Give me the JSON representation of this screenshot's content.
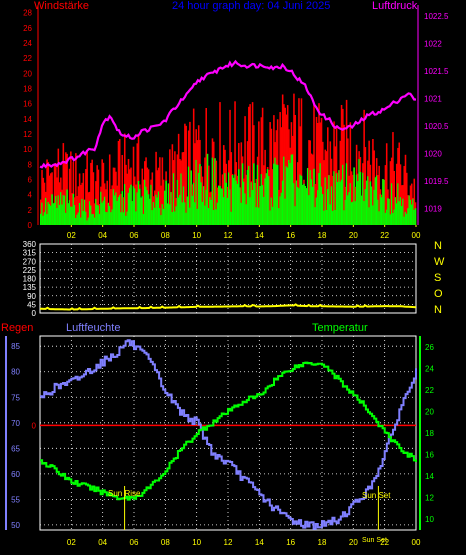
{
  "header": {
    "left_label": "Windstärke",
    "center_label": "24 hour graph day: 04 Juni 2025",
    "right_label": "Luftdruck"
  },
  "middle": {
    "direction_labels": [
      "N",
      "W",
      "S",
      "O",
      "N"
    ]
  },
  "bottom": {
    "regen_label": "Regen",
    "humidity_label": "Luftfeuchte",
    "temperature_label": "Temperatur",
    "sunrise_label": "Sun Rise",
    "sunset_label": "Sun Set",
    "sunset_dup_label": "Sun Set"
  },
  "colors": {
    "wind_gust": "#ff0000",
    "wind_avg": "#00ff00",
    "pressure": "#ff00ff",
    "direction": "#ffff00",
    "humidity": "#8080ff",
    "temperature": "#00ff00",
    "rain": "#ff0000",
    "grid": "#ffff00",
    "title": "#0000ff"
  },
  "chart_data": [
    {
      "type": "bar",
      "x_ticks": [
        "02",
        "04",
        "06",
        "08",
        "10",
        "12",
        "14",
        "16",
        "18",
        "20",
        "22",
        "00"
      ],
      "xlim": [
        0,
        24
      ],
      "y_left_ticks": [
        0,
        2,
        4,
        6,
        8,
        10,
        12,
        14,
        16,
        18,
        20,
        22,
        24,
        26,
        28
      ],
      "ylim_left": [
        0,
        29
      ],
      "y_right_ticks": [
        1019,
        1019.5,
        1020,
        1020.5,
        1021,
        1021.5,
        1022,
        1022.5
      ],
      "ylim_right": [
        1018.7,
        1022.7
      ],
      "series": [
        {
          "name": "Windstärke",
          "axis": "left",
          "hours": [
            0,
            1,
            2,
            3,
            4,
            5,
            6,
            7,
            8,
            9,
            10,
            11,
            12,
            13,
            14,
            15,
            16,
            17,
            18,
            19,
            20,
            21,
            22,
            23,
            24
          ],
          "values": [
            6,
            8,
            7,
            7,
            6,
            8,
            9,
            7,
            7,
            9,
            11,
            12,
            11,
            12,
            11,
            12,
            13,
            12,
            11,
            11,
            12,
            10,
            9,
            8,
            5
          ]
        },
        {
          "name": "avg",
          "axis": "left",
          "hours": [
            0,
            1,
            2,
            3,
            4,
            5,
            6,
            7,
            8,
            9,
            10,
            11,
            12,
            13,
            14,
            15,
            16,
            17,
            18,
            19,
            20,
            21,
            22,
            23,
            24
          ],
          "values": [
            2,
            3,
            3,
            2,
            3,
            3,
            4,
            4,
            4,
            5,
            6,
            6,
            5,
            6,
            5,
            6,
            6,
            6,
            5,
            5,
            6,
            5,
            5,
            4,
            2
          ]
        },
        {
          "name": "Luftdruck",
          "axis": "right",
          "hours": [
            0,
            0.5,
            1,
            1.5,
            2,
            2.5,
            3,
            3.5,
            4,
            4.5,
            5,
            5.5,
            6,
            6.5,
            7,
            7.5,
            8,
            8.5,
            9,
            9.5,
            10,
            10.5,
            11,
            11.5,
            12,
            12.5,
            13,
            13.5,
            14,
            14.5,
            15,
            15.5,
            16,
            16.5,
            17,
            17.5,
            18,
            18.5,
            19,
            19.5,
            20,
            20.5,
            21,
            21.5,
            22,
            22.5,
            23,
            23.5,
            24
          ],
          "values": [
            1019.75,
            1019.8,
            1019.8,
            1019.85,
            1019.9,
            1019.95,
            1020.05,
            1020.1,
            1020.55,
            1020.7,
            1020.4,
            1020.3,
            1020.3,
            1020.4,
            1020.45,
            1020.5,
            1020.6,
            1020.8,
            1020.95,
            1021.1,
            1021.3,
            1021.4,
            1021.45,
            1021.55,
            1021.6,
            1021.65,
            1021.6,
            1021.6,
            1021.6,
            1021.6,
            1021.55,
            1021.6,
            1021.5,
            1021.35,
            1021.2,
            1020.9,
            1020.7,
            1020.6,
            1020.45,
            1020.45,
            1020.5,
            1020.6,
            1020.7,
            1020.75,
            1020.8,
            1020.9,
            1021.0,
            1021.1,
            1020.95
          ]
        }
      ]
    },
    {
      "type": "line",
      "x_ticks": [
        "02",
        "04",
        "06",
        "08",
        "10",
        "12",
        "14",
        "16",
        "18",
        "20",
        "22",
        "00"
      ],
      "xlim": [
        0,
        24
      ],
      "y_ticks": [
        0,
        45,
        90,
        135,
        180,
        225,
        270,
        315,
        360
      ],
      "ylim": [
        0,
        360
      ],
      "series": [
        {
          "name": "direction",
          "hours": [
            0,
            1,
            2,
            3,
            4,
            5,
            6,
            7,
            8,
            9,
            10,
            11,
            12,
            13,
            14,
            15,
            16,
            17,
            18,
            19,
            20,
            21,
            22,
            23,
            24
          ],
          "values": [
            22,
            20,
            18,
            20,
            22,
            24,
            25,
            26,
            28,
            30,
            32,
            33,
            34,
            35,
            34,
            36,
            40,
            36,
            35,
            34,
            33,
            34,
            36,
            35,
            30
          ]
        }
      ]
    },
    {
      "type": "line",
      "x_ticks": [
        "02",
        "04",
        "06",
        "08",
        "10",
        "12",
        "14",
        "16",
        "18",
        "20",
        "22",
        "00"
      ],
      "xlim": [
        0,
        24
      ],
      "y_left_ticks": [
        50,
        55,
        60,
        65,
        70,
        75,
        80,
        85
      ],
      "ylim_left": [
        49,
        87
      ],
      "y_right_ticks": [
        10,
        12,
        14,
        16,
        18,
        20,
        22,
        24,
        26
      ],
      "ylim_right": [
        9,
        27
      ],
      "rain_value": 0,
      "sunrise_hour": 5.4,
      "sunset_hour": 21.6,
      "series": [
        {
          "name": "Luftfeuchte",
          "axis": "left",
          "hours": [
            0,
            1,
            2,
            3,
            4,
            5,
            5.5,
            6,
            7,
            8,
            9,
            10,
            11,
            12,
            13,
            14,
            15,
            16,
            17,
            18,
            19,
            20,
            21,
            22,
            23,
            24
          ],
          "values": [
            75,
            77,
            78,
            80,
            82,
            84,
            86,
            85,
            82,
            76,
            72,
            70,
            64,
            62,
            59,
            56,
            53,
            51,
            50,
            50,
            51,
            54,
            57,
            64,
            73,
            80
          ]
        },
        {
          "name": "Temperatur",
          "axis": "right",
          "hours": [
            0,
            1,
            2,
            3,
            4,
            5,
            6,
            7,
            8,
            9,
            10,
            11,
            12,
            13,
            14,
            15,
            16,
            17,
            18,
            19,
            20,
            21,
            22,
            23,
            24
          ],
          "values": [
            15.5,
            14.5,
            13.5,
            13,
            12.5,
            12,
            12,
            13,
            14.5,
            16.5,
            18,
            19,
            20,
            21,
            21.5,
            23,
            24,
            24.5,
            24.5,
            23,
            21.5,
            20,
            18,
            16.5,
            15.5
          ]
        }
      ]
    }
  ]
}
